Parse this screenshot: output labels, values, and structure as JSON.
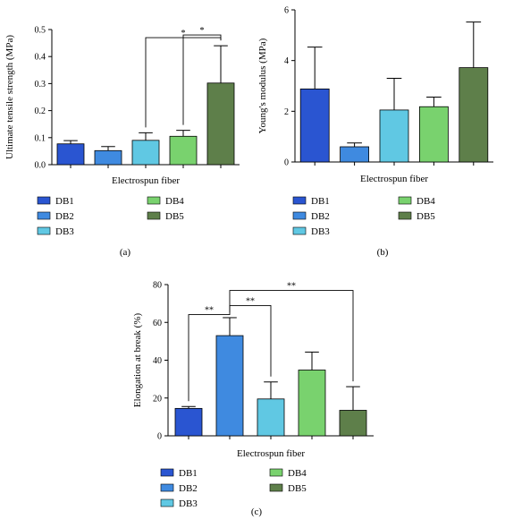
{
  "colors": {
    "DB1": "#2a55d1",
    "DB2": "#3f8ae0",
    "DB3": "#60c8e3",
    "DB4": "#79d26e",
    "DB5": "#5e7f4a"
  },
  "chart_data": [
    {
      "panel": "(a)",
      "type": "bar",
      "categories": [
        "DB1",
        "DB2",
        "DB3",
        "DB4",
        "DB5"
      ],
      "values": [
        0.077,
        0.052,
        0.09,
        0.105,
        0.302
      ],
      "errors": [
        0.012,
        0.015,
        0.028,
        0.022,
        0.138
      ],
      "xlabel": "Electrospun fiber",
      "ylabel": "Ultimate tensile strength (MPa)",
      "ylim": [
        0,
        0.5
      ],
      "yticks": [
        0,
        0.1,
        0.2,
        0.3,
        0.4,
        0.5
      ],
      "ytick_labels": [
        "0.0",
        "0.1",
        "0.2",
        "0.3",
        "0.4",
        "0.5"
      ],
      "significance": [
        {
          "from": "DB3",
          "to": "DB5",
          "label": "*"
        },
        {
          "from": "DB4",
          "to": "DB5",
          "label": "*"
        }
      ],
      "legend": [
        "DB1",
        "DB2",
        "DB3",
        "DB4",
        "DB5"
      ]
    },
    {
      "panel": "(b)",
      "type": "bar",
      "categories": [
        "DB1",
        "DB2",
        "DB3",
        "DB4",
        "DB5"
      ],
      "values": [
        2.88,
        0.6,
        2.05,
        2.18,
        3.72
      ],
      "errors": [
        1.65,
        0.15,
        1.25,
        0.38,
        1.8
      ],
      "xlabel": "Electrospun fiber",
      "ylabel": "Young's modulus (MPa)",
      "ylim": [
        0,
        6
      ],
      "yticks": [
        0,
        2,
        4,
        6
      ],
      "ytick_labels": [
        "0",
        "2",
        "4",
        "6"
      ],
      "significance": [],
      "legend": [
        "DB1",
        "DB2",
        "DB3",
        "DB4",
        "DB5"
      ]
    },
    {
      "panel": "(c)",
      "type": "bar",
      "categories": [
        "DB1",
        "DB2",
        "DB3",
        "DB4",
        "DB5"
      ],
      "values": [
        14.5,
        53,
        19.5,
        34.8,
        13.5
      ],
      "errors": [
        1.0,
        9.5,
        9.0,
        9.5,
        12.5
      ],
      "xlabel": "Electrospun fiber",
      "ylabel": "Elongation at break (%)",
      "ylim": [
        0,
        80
      ],
      "yticks": [
        0,
        20,
        40,
        60,
        80
      ],
      "ytick_labels": [
        "0",
        "20",
        "40",
        "60",
        "80"
      ],
      "significance": [
        {
          "from": "DB1",
          "to": "DB2",
          "label": "**"
        },
        {
          "from": "DB2",
          "to": "DB3",
          "label": "**"
        },
        {
          "from": "DB2",
          "to": "DB5",
          "label": "**"
        }
      ],
      "legend": [
        "DB1",
        "DB2",
        "DB3",
        "DB4",
        "DB5"
      ]
    }
  ]
}
